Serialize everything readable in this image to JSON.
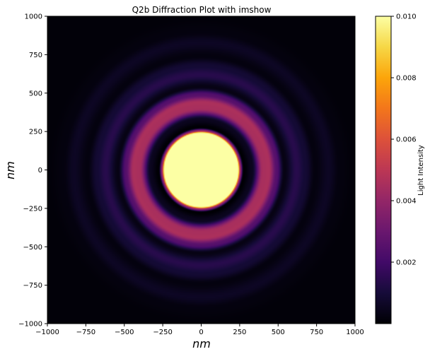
{
  "chart_data": {
    "type": "heatmap",
    "title": "Q2b Diffraction Plot with imshow",
    "xlabel": "nm",
    "ylabel": "nm",
    "xlim": [
      -1000,
      1000
    ],
    "ylim": [
      -1000,
      1000
    ],
    "x_ticks": [
      -1000,
      -750,
      -500,
      -250,
      0,
      250,
      500,
      750,
      1000
    ],
    "y_ticks": [
      -1000,
      -750,
      -500,
      -250,
      0,
      250,
      500,
      750,
      1000
    ],
    "x_tick_labels": [
      "−1000",
      "−750",
      "−500",
      "−250",
      "0",
      "250",
      "500",
      "750",
      "1000"
    ],
    "y_tick_labels": [
      "−1000",
      "−750",
      "−500",
      "−250",
      "0",
      "250",
      "500",
      "750",
      "1000"
    ],
    "colormap": "inferno",
    "colorbar": {
      "label": "Light Intensity",
      "range": [
        0.0,
        0.01
      ],
      "ticks": [
        0.002,
        0.004,
        0.006,
        0.008,
        0.01
      ],
      "tick_labels": [
        "0.002",
        "0.004",
        "0.006",
        "0.008",
        "0.010"
      ]
    },
    "pattern": {
      "description_type": "airy_disk",
      "central_disk_radius_nm": 250,
      "ring_intensity_profile": [
        {
          "r": 0,
          "value": 0.01
        },
        {
          "r": 240,
          "value": 0.01
        },
        {
          "r": 255,
          "value": 0.004
        },
        {
          "r": 275,
          "value": 0.0
        },
        {
          "r": 330,
          "value": 0.0005
        },
        {
          "r": 400,
          "value": 0.0045
        },
        {
          "r": 440,
          "value": 0.0046
        },
        {
          "r": 490,
          "value": 0.0025
        },
        {
          "r": 540,
          "value": 0.0003
        },
        {
          "r": 620,
          "value": 0.0014
        },
        {
          "r": 680,
          "value": 0.0009
        },
        {
          "r": 740,
          "value": 0.0002
        },
        {
          "r": 830,
          "value": 0.0006
        },
        {
          "r": 900,
          "value": 0.0002
        },
        {
          "r": 1000,
          "value": 0.0001
        }
      ]
    }
  }
}
